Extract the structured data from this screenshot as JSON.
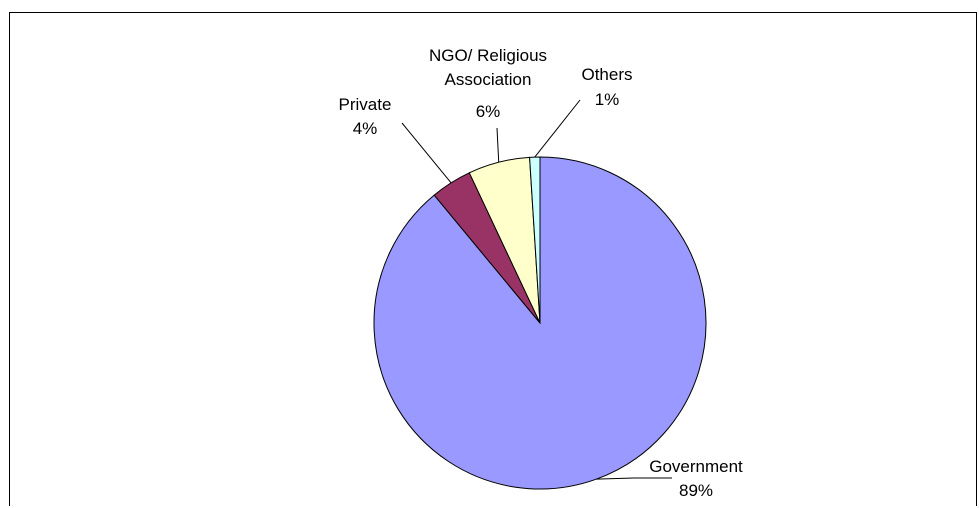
{
  "chart_data": {
    "type": "pie",
    "title": "",
    "slices": [
      {
        "name": "Government",
        "value": 89,
        "label": "89%",
        "color": "#9999ff"
      },
      {
        "name": "Private",
        "value": 4,
        "label": "4%",
        "color": "#993366"
      },
      {
        "name": "NGO/ Religious Association",
        "name_lines": [
          "NGO/ Religious",
          "Association"
        ],
        "value": 6,
        "label": "6%",
        "color": "#ffffcc"
      },
      {
        "name": "Others",
        "value": 1,
        "label": "1%",
        "color": "#ccffff"
      }
    ]
  }
}
